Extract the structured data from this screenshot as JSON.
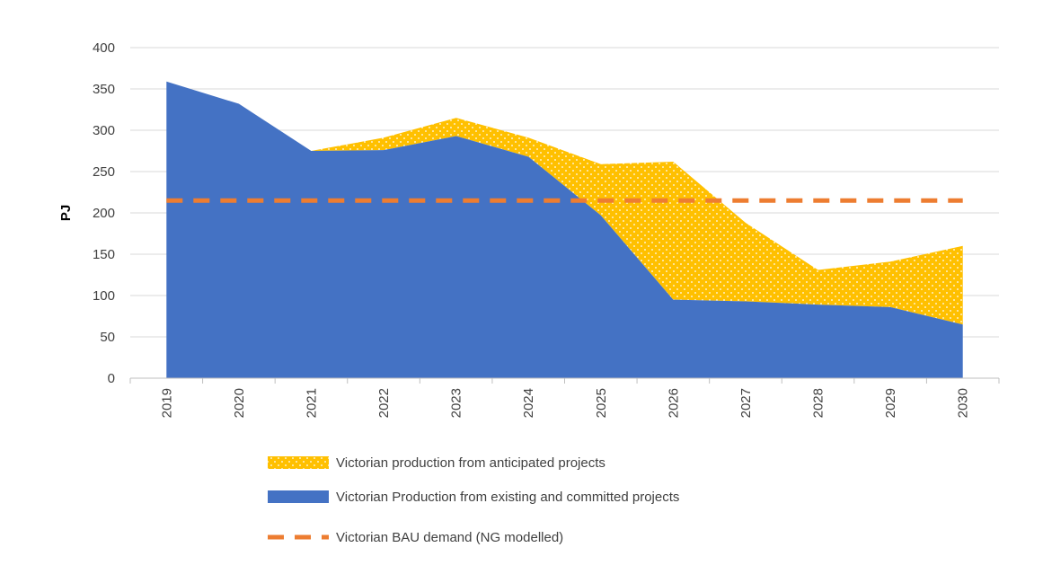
{
  "chart_data": {
    "type": "area",
    "title": "",
    "xlabel": "",
    "ylabel": "PJ",
    "ylim": [
      0,
      400
    ],
    "yticks": [
      0,
      50,
      100,
      150,
      200,
      250,
      300,
      350,
      400
    ],
    "categories": [
      "2019",
      "2020",
      "2021",
      "2022",
      "2023",
      "2024",
      "2025",
      "2026",
      "2027",
      "2028",
      "2029",
      "2030"
    ],
    "grid": true,
    "legend_position": "bottom",
    "series": [
      {
        "name": "Victorian production from anticipated projects",
        "kind": "stacked-area",
        "pattern": "dotted",
        "color": "#FFC000",
        "values": [
          0,
          0,
          0,
          15,
          22,
          23,
          62,
          167,
          95,
          42,
          55,
          95
        ]
      },
      {
        "name": "Victorian Production from existing and committed projects",
        "kind": "area",
        "color": "#4472C4",
        "values": [
          359,
          332,
          275,
          276,
          293,
          268,
          197,
          95,
          93,
          89,
          86,
          65
        ]
      },
      {
        "name": "Victorian BAU demand (NG modelled)",
        "kind": "dashed-line",
        "color": "#ED7D31",
        "values": [
          215,
          215,
          215,
          215,
          215,
          215,
          215,
          215,
          215,
          215,
          215,
          215
        ]
      }
    ]
  }
}
